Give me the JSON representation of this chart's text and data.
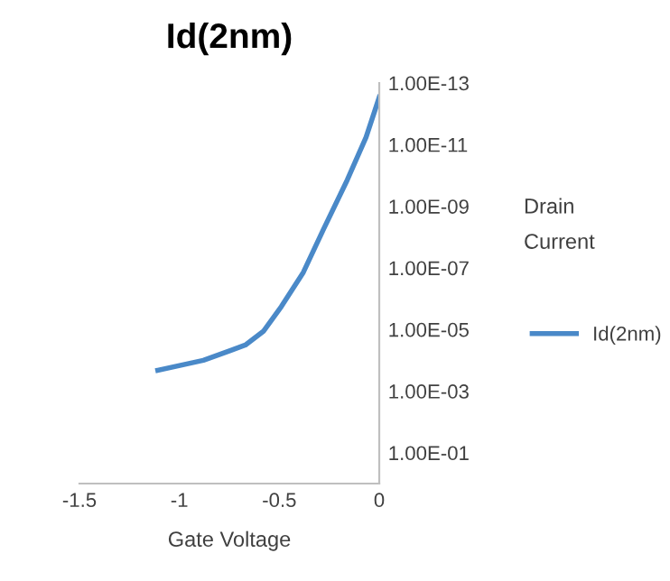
{
  "chart_data": {
    "type": "line",
    "title": "Id(2nm)",
    "xlabel": "Gate Voltage",
    "ylabel": "Drain Current",
    "x": [
      -1.108,
      -0.88,
      -0.67,
      -0.58,
      -0.49,
      -0.38,
      -0.28,
      -0.16,
      -0.066,
      0
    ],
    "series": [
      {
        "name": "Id(2nm)",
        "color": "#4a89c8",
        "values": [
          0.00021,
          0.0001,
          3.2e-05,
          1.15e-05,
          1.8e-06,
          1.4e-07,
          5.8e-09,
          1.4e-10,
          5.8e-12,
          2.9e-13
        ]
      }
    ],
    "xlim": [
      -1.5,
      0
    ],
    "xticks": [
      -1.5,
      -1,
      -0.5,
      0
    ],
    "ylim": [
      1,
      1e-13
    ],
    "yticks": [
      {
        "value": 1e-13,
        "label": "1.00E-13"
      },
      {
        "value": 1e-11,
        "label": "1.00E-11"
      },
      {
        "value": 1e-09,
        "label": "1.00E-09"
      },
      {
        "value": 1e-07,
        "label": "1.00E-07"
      },
      {
        "value": 1e-05,
        "label": "1.00E-05"
      },
      {
        "value": 0.001,
        "label": "1.00E-03"
      },
      {
        "value": 0.1,
        "label": "1.00E-01"
      }
    ],
    "log": "y",
    "grid": false,
    "legend": "right",
    "marker": "none",
    "line_style": "solid"
  }
}
